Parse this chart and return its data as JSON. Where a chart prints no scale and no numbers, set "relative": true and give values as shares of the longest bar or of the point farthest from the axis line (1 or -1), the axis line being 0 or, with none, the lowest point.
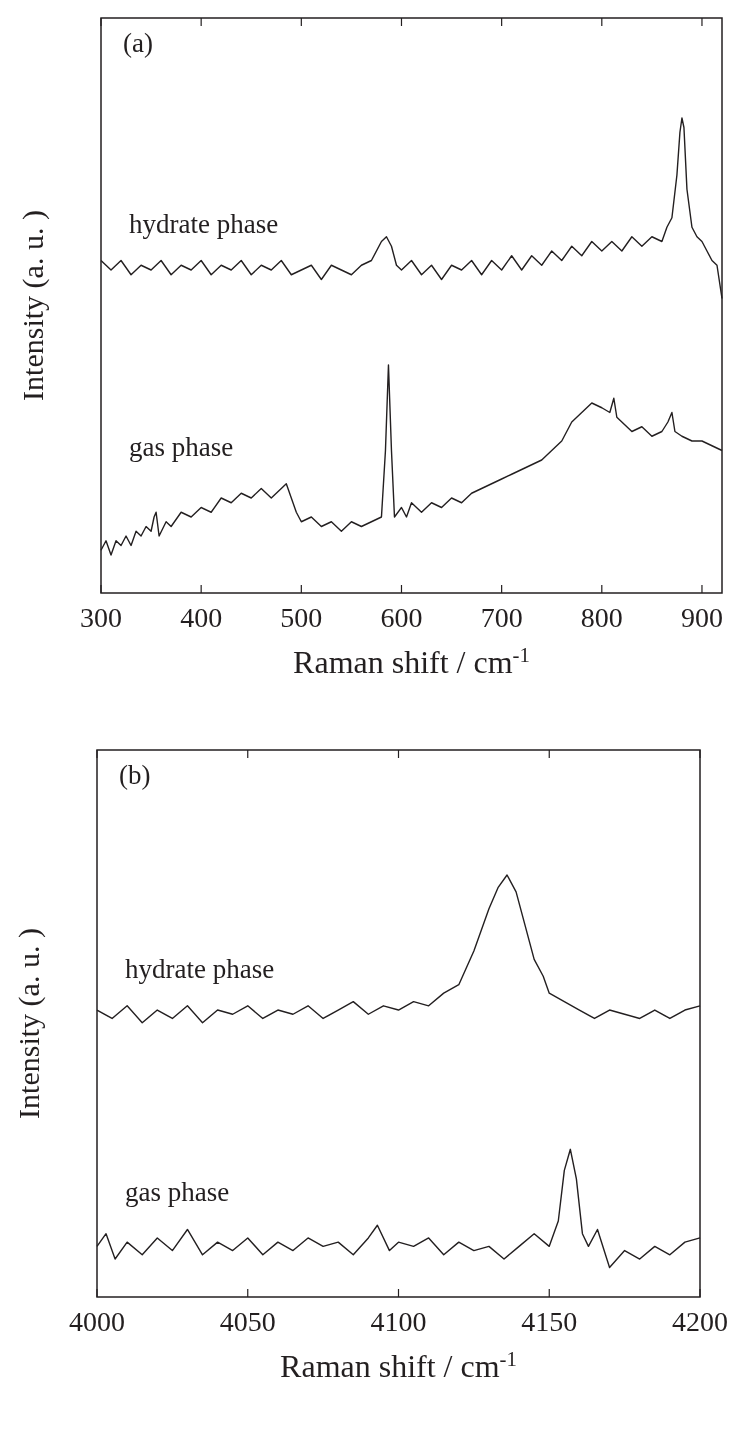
{
  "chart_data": [
    {
      "type": "line",
      "relative": true,
      "xlabel": "Raman shift / cm$^{-1}$",
      "ylabel": "Intensity (a. u. )",
      "annotations": [
        "(a)"
      ],
      "xlim": [
        300,
        920
      ],
      "xticks": [
        300,
        400,
        500,
        600,
        700,
        800,
        900
      ],
      "grid": false,
      "legend": false,
      "series": [
        {
          "name": "hydrate phase",
          "color": "#231f20",
          "x": [
            300,
            310,
            320,
            330,
            340,
            350,
            360,
            370,
            380,
            390,
            400,
            410,
            420,
            430,
            440,
            450,
            460,
            470,
            480,
            490,
            500,
            510,
            520,
            530,
            540,
            550,
            560,
            570,
            580,
            585,
            590,
            595,
            600,
            610,
            620,
            630,
            640,
            650,
            660,
            670,
            680,
            690,
            700,
            710,
            720,
            730,
            740,
            750,
            760,
            770,
            780,
            790,
            800,
            810,
            820,
            830,
            840,
            850,
            860,
            865,
            870,
            875,
            878,
            880,
            882,
            885,
            890,
            895,
            900,
            905,
            910,
            915,
            920
          ],
          "values": [
            0.7,
            0.68,
            0.7,
            0.67,
            0.69,
            0.68,
            0.7,
            0.67,
            0.69,
            0.68,
            0.7,
            0.67,
            0.69,
            0.68,
            0.7,
            0.67,
            0.69,
            0.68,
            0.7,
            0.67,
            0.68,
            0.69,
            0.66,
            0.69,
            0.68,
            0.67,
            0.69,
            0.7,
            0.74,
            0.75,
            0.73,
            0.69,
            0.68,
            0.7,
            0.67,
            0.69,
            0.66,
            0.69,
            0.68,
            0.7,
            0.67,
            0.7,
            0.68,
            0.71,
            0.68,
            0.71,
            0.69,
            0.72,
            0.7,
            0.73,
            0.71,
            0.74,
            0.72,
            0.74,
            0.72,
            0.75,
            0.73,
            0.75,
            0.74,
            0.77,
            0.79,
            0.88,
            0.97,
            1.0,
            0.98,
            0.85,
            0.77,
            0.75,
            0.74,
            0.72,
            0.7,
            0.69,
            0.62
          ]
        },
        {
          "name": "gas phase",
          "color": "#231f20",
          "x": [
            300,
            305,
            310,
            315,
            320,
            325,
            330,
            335,
            340,
            345,
            350,
            353,
            355,
            358,
            365,
            370,
            380,
            390,
            400,
            410,
            420,
            430,
            440,
            450,
            460,
            470,
            480,
            485,
            490,
            495,
            500,
            510,
            520,
            530,
            540,
            550,
            560,
            570,
            580,
            584,
            587,
            590,
            593,
            600,
            605,
            610,
            620,
            630,
            640,
            650,
            660,
            670,
            680,
            690,
            700,
            710,
            720,
            730,
            740,
            750,
            760,
            770,
            780,
            790,
            800,
            808,
            812,
            815,
            820,
            830,
            840,
            850,
            860,
            866,
            870,
            873,
            880,
            890,
            900,
            910,
            920
          ],
          "values": [
            0.09,
            0.11,
            0.08,
            0.11,
            0.1,
            0.12,
            0.1,
            0.13,
            0.12,
            0.14,
            0.13,
            0.16,
            0.17,
            0.12,
            0.15,
            0.14,
            0.17,
            0.16,
            0.18,
            0.17,
            0.2,
            0.19,
            0.21,
            0.2,
            0.22,
            0.2,
            0.22,
            0.23,
            0.2,
            0.17,
            0.15,
            0.16,
            0.14,
            0.15,
            0.13,
            0.15,
            0.14,
            0.15,
            0.16,
            0.3,
            0.48,
            0.3,
            0.16,
            0.18,
            0.16,
            0.19,
            0.17,
            0.19,
            0.18,
            0.2,
            0.19,
            0.21,
            0.22,
            0.23,
            0.24,
            0.25,
            0.26,
            0.27,
            0.28,
            0.3,
            0.32,
            0.36,
            0.38,
            0.4,
            0.39,
            0.38,
            0.41,
            0.37,
            0.36,
            0.34,
            0.35,
            0.33,
            0.34,
            0.36,
            0.38,
            0.34,
            0.33,
            0.32,
            0.32,
            0.31,
            0.3
          ]
        }
      ]
    },
    {
      "type": "line",
      "relative": true,
      "xlabel": "Raman shift / cm$^{-1}$",
      "ylabel": "Intensity (a. u. )",
      "annotations": [
        "(b)"
      ],
      "xlim": [
        4000,
        4200
      ],
      "xticks": [
        4000,
        4050,
        4100,
        4150,
        4200
      ],
      "grid": false,
      "legend": false,
      "series": [
        {
          "name": "hydrate phase",
          "color": "#231f20",
          "x": [
            4000,
            4005,
            4010,
            4015,
            4020,
            4025,
            4030,
            4035,
            4040,
            4045,
            4050,
            4055,
            4060,
            4065,
            4070,
            4075,
            4080,
            4085,
            4090,
            4095,
            4100,
            4105,
            4110,
            4115,
            4120,
            4125,
            4130,
            4133,
            4136,
            4139,
            4142,
            4145,
            4148,
            4150,
            4155,
            4160,
            4165,
            4170,
            4175,
            4180,
            4185,
            4190,
            4195,
            4200
          ],
          "values": [
            0.68,
            0.66,
            0.69,
            0.65,
            0.68,
            0.66,
            0.69,
            0.65,
            0.68,
            0.67,
            0.69,
            0.66,
            0.68,
            0.67,
            0.69,
            0.66,
            0.68,
            0.7,
            0.67,
            0.69,
            0.68,
            0.7,
            0.69,
            0.72,
            0.74,
            0.82,
            0.92,
            0.97,
            1.0,
            0.96,
            0.88,
            0.8,
            0.76,
            0.72,
            0.7,
            0.68,
            0.66,
            0.68,
            0.67,
            0.66,
            0.68,
            0.66,
            0.68,
            0.69
          ]
        },
        {
          "name": "gas phase",
          "color": "#231f20",
          "x": [
            4000,
            4003,
            4006,
            4010,
            4015,
            4020,
            4025,
            4030,
            4035,
            4040,
            4045,
            4050,
            4055,
            4060,
            4065,
            4070,
            4075,
            4080,
            4085,
            4090,
            4093,
            4097,
            4100,
            4105,
            4110,
            4115,
            4120,
            4125,
            4130,
            4135,
            4140,
            4145,
            4150,
            4153,
            4155,
            4157,
            4159,
            4161,
            4163,
            4166,
            4170,
            4175,
            4180,
            4185,
            4190,
            4195,
            4200
          ],
          "values": [
            0.12,
            0.15,
            0.09,
            0.13,
            0.1,
            0.14,
            0.11,
            0.16,
            0.1,
            0.13,
            0.11,
            0.14,
            0.1,
            0.13,
            0.11,
            0.14,
            0.12,
            0.13,
            0.1,
            0.14,
            0.17,
            0.11,
            0.13,
            0.12,
            0.14,
            0.1,
            0.13,
            0.11,
            0.12,
            0.09,
            0.12,
            0.15,
            0.12,
            0.18,
            0.3,
            0.35,
            0.28,
            0.15,
            0.12,
            0.16,
            0.07,
            0.11,
            0.09,
            0.12,
            0.1,
            0.13,
            0.14
          ]
        }
      ]
    }
  ]
}
